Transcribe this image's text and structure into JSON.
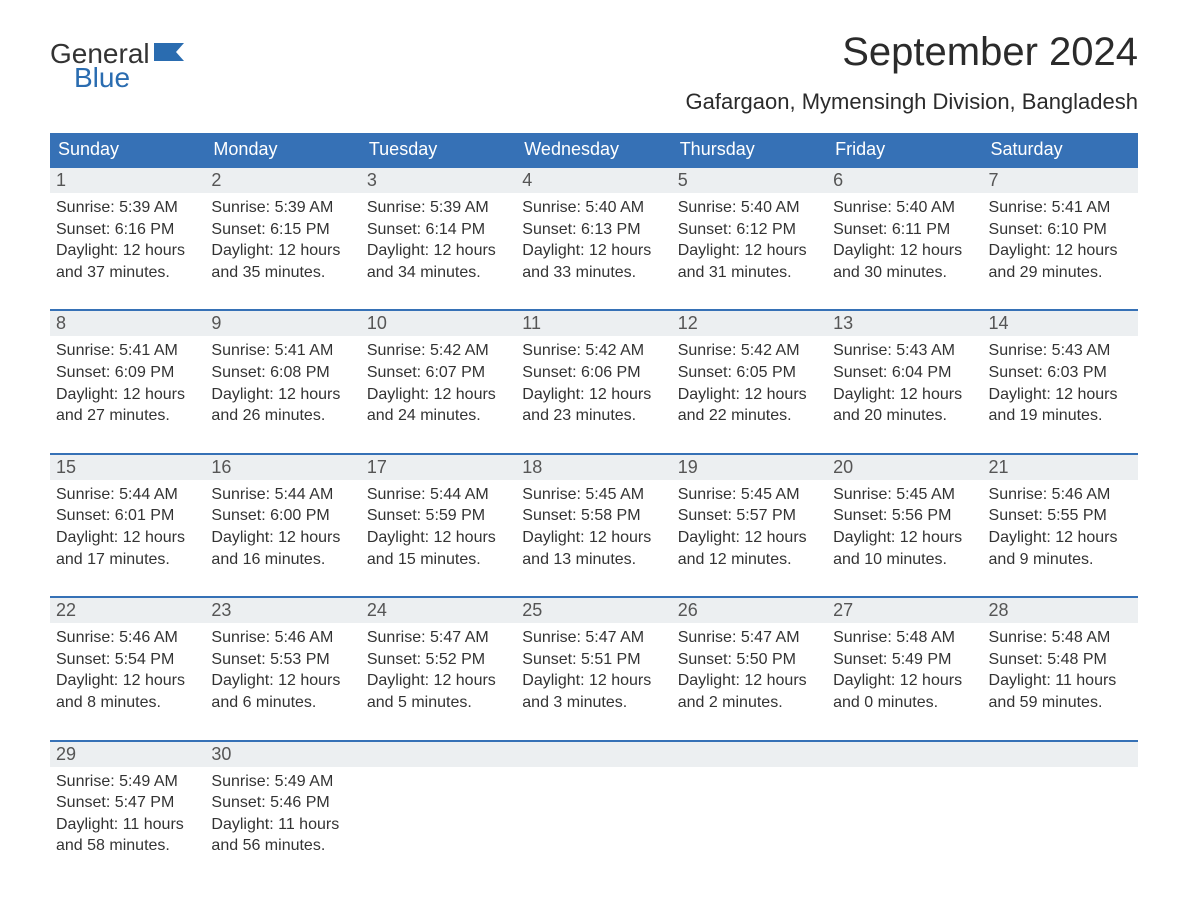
{
  "logo": {
    "line1": "General",
    "line2": "Blue",
    "text_color": "#333333",
    "blue_color": "#2a6cb0",
    "flag_color": "#2a6cb0"
  },
  "title": {
    "month": "September 2024",
    "location": "Gafargaon, Mymensingh Division, Bangladesh",
    "month_fontsize": 40,
    "location_fontsize": 22,
    "text_color": "#2b2b2b"
  },
  "calendar": {
    "type": "table",
    "header_bg": "#3671b6",
    "header_text_color": "#ffffff",
    "daybar_bg": "#eceff1",
    "daybar_text_color": "#555555",
    "body_text_color": "#333333",
    "row_separator_color": "#3671b6",
    "days": [
      "Sunday",
      "Monday",
      "Tuesday",
      "Wednesday",
      "Thursday",
      "Friday",
      "Saturday"
    ],
    "weeks": [
      {
        "cells": [
          {
            "n": "1",
            "sunrise": "Sunrise: 5:39 AM",
            "sunset": "Sunset: 6:16 PM",
            "daylight1": "Daylight: 12 hours",
            "daylight2": "and 37 minutes."
          },
          {
            "n": "2",
            "sunrise": "Sunrise: 5:39 AM",
            "sunset": "Sunset: 6:15 PM",
            "daylight1": "Daylight: 12 hours",
            "daylight2": "and 35 minutes."
          },
          {
            "n": "3",
            "sunrise": "Sunrise: 5:39 AM",
            "sunset": "Sunset: 6:14 PM",
            "daylight1": "Daylight: 12 hours",
            "daylight2": "and 34 minutes."
          },
          {
            "n": "4",
            "sunrise": "Sunrise: 5:40 AM",
            "sunset": "Sunset: 6:13 PM",
            "daylight1": "Daylight: 12 hours",
            "daylight2": "and 33 minutes."
          },
          {
            "n": "5",
            "sunrise": "Sunrise: 5:40 AM",
            "sunset": "Sunset: 6:12 PM",
            "daylight1": "Daylight: 12 hours",
            "daylight2": "and 31 minutes."
          },
          {
            "n": "6",
            "sunrise": "Sunrise: 5:40 AM",
            "sunset": "Sunset: 6:11 PM",
            "daylight1": "Daylight: 12 hours",
            "daylight2": "and 30 minutes."
          },
          {
            "n": "7",
            "sunrise": "Sunrise: 5:41 AM",
            "sunset": "Sunset: 6:10 PM",
            "daylight1": "Daylight: 12 hours",
            "daylight2": "and 29 minutes."
          }
        ]
      },
      {
        "cells": [
          {
            "n": "8",
            "sunrise": "Sunrise: 5:41 AM",
            "sunset": "Sunset: 6:09 PM",
            "daylight1": "Daylight: 12 hours",
            "daylight2": "and 27 minutes."
          },
          {
            "n": "9",
            "sunrise": "Sunrise: 5:41 AM",
            "sunset": "Sunset: 6:08 PM",
            "daylight1": "Daylight: 12 hours",
            "daylight2": "and 26 minutes."
          },
          {
            "n": "10",
            "sunrise": "Sunrise: 5:42 AM",
            "sunset": "Sunset: 6:07 PM",
            "daylight1": "Daylight: 12 hours",
            "daylight2": "and 24 minutes."
          },
          {
            "n": "11",
            "sunrise": "Sunrise: 5:42 AM",
            "sunset": "Sunset: 6:06 PM",
            "daylight1": "Daylight: 12 hours",
            "daylight2": "and 23 minutes."
          },
          {
            "n": "12",
            "sunrise": "Sunrise: 5:42 AM",
            "sunset": "Sunset: 6:05 PM",
            "daylight1": "Daylight: 12 hours",
            "daylight2": "and 22 minutes."
          },
          {
            "n": "13",
            "sunrise": "Sunrise: 5:43 AM",
            "sunset": "Sunset: 6:04 PM",
            "daylight1": "Daylight: 12 hours",
            "daylight2": "and 20 minutes."
          },
          {
            "n": "14",
            "sunrise": "Sunrise: 5:43 AM",
            "sunset": "Sunset: 6:03 PM",
            "daylight1": "Daylight: 12 hours",
            "daylight2": "and 19 minutes."
          }
        ]
      },
      {
        "cells": [
          {
            "n": "15",
            "sunrise": "Sunrise: 5:44 AM",
            "sunset": "Sunset: 6:01 PM",
            "daylight1": "Daylight: 12 hours",
            "daylight2": "and 17 minutes."
          },
          {
            "n": "16",
            "sunrise": "Sunrise: 5:44 AM",
            "sunset": "Sunset: 6:00 PM",
            "daylight1": "Daylight: 12 hours",
            "daylight2": "and 16 minutes."
          },
          {
            "n": "17",
            "sunrise": "Sunrise: 5:44 AM",
            "sunset": "Sunset: 5:59 PM",
            "daylight1": "Daylight: 12 hours",
            "daylight2": "and 15 minutes."
          },
          {
            "n": "18",
            "sunrise": "Sunrise: 5:45 AM",
            "sunset": "Sunset: 5:58 PM",
            "daylight1": "Daylight: 12 hours",
            "daylight2": "and 13 minutes."
          },
          {
            "n": "19",
            "sunrise": "Sunrise: 5:45 AM",
            "sunset": "Sunset: 5:57 PM",
            "daylight1": "Daylight: 12 hours",
            "daylight2": "and 12 minutes."
          },
          {
            "n": "20",
            "sunrise": "Sunrise: 5:45 AM",
            "sunset": "Sunset: 5:56 PM",
            "daylight1": "Daylight: 12 hours",
            "daylight2": "and 10 minutes."
          },
          {
            "n": "21",
            "sunrise": "Sunrise: 5:46 AM",
            "sunset": "Sunset: 5:55 PM",
            "daylight1": "Daylight: 12 hours",
            "daylight2": "and 9 minutes."
          }
        ]
      },
      {
        "cells": [
          {
            "n": "22",
            "sunrise": "Sunrise: 5:46 AM",
            "sunset": "Sunset: 5:54 PM",
            "daylight1": "Daylight: 12 hours",
            "daylight2": "and 8 minutes."
          },
          {
            "n": "23",
            "sunrise": "Sunrise: 5:46 AM",
            "sunset": "Sunset: 5:53 PM",
            "daylight1": "Daylight: 12 hours",
            "daylight2": "and 6 minutes."
          },
          {
            "n": "24",
            "sunrise": "Sunrise: 5:47 AM",
            "sunset": "Sunset: 5:52 PM",
            "daylight1": "Daylight: 12 hours",
            "daylight2": "and 5 minutes."
          },
          {
            "n": "25",
            "sunrise": "Sunrise: 5:47 AM",
            "sunset": "Sunset: 5:51 PM",
            "daylight1": "Daylight: 12 hours",
            "daylight2": "and 3 minutes."
          },
          {
            "n": "26",
            "sunrise": "Sunrise: 5:47 AM",
            "sunset": "Sunset: 5:50 PM",
            "daylight1": "Daylight: 12 hours",
            "daylight2": "and 2 minutes."
          },
          {
            "n": "27",
            "sunrise": "Sunrise: 5:48 AM",
            "sunset": "Sunset: 5:49 PM",
            "daylight1": "Daylight: 12 hours",
            "daylight2": "and 0 minutes."
          },
          {
            "n": "28",
            "sunrise": "Sunrise: 5:48 AM",
            "sunset": "Sunset: 5:48 PM",
            "daylight1": "Daylight: 11 hours",
            "daylight2": "and 59 minutes."
          }
        ]
      },
      {
        "cells": [
          {
            "n": "29",
            "sunrise": "Sunrise: 5:49 AM",
            "sunset": "Sunset: 5:47 PM",
            "daylight1": "Daylight: 11 hours",
            "daylight2": "and 58 minutes."
          },
          {
            "n": "30",
            "sunrise": "Sunrise: 5:49 AM",
            "sunset": "Sunset: 5:46 PM",
            "daylight1": "Daylight: 11 hours",
            "daylight2": "and 56 minutes."
          },
          {
            "empty": true
          },
          {
            "empty": true
          },
          {
            "empty": true
          },
          {
            "empty": true
          },
          {
            "empty": true
          }
        ]
      }
    ]
  }
}
